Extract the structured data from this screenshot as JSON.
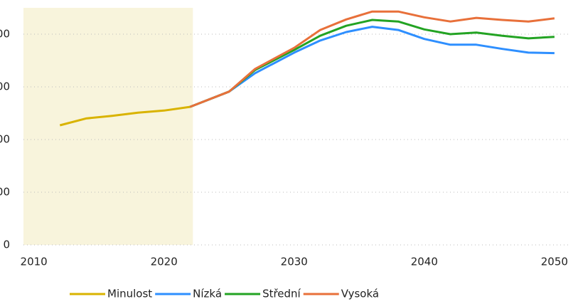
{
  "chart_data": {
    "type": "line",
    "x": [
      2012,
      2014,
      2016,
      2018,
      2020,
      2022,
      2025,
      2027,
      2030,
      2032,
      2034,
      2036,
      2038,
      2040,
      2042,
      2044,
      2046,
      2048,
      2050
    ],
    "series": [
      {
        "name": "Minulost",
        "color": "#d9b300",
        "values": [
          227,
          240,
          245,
          251,
          255,
          262,
          null,
          null,
          null,
          null,
          null,
          null,
          null,
          null,
          null,
          null,
          null,
          null,
          null
        ]
      },
      {
        "name": "Nízká",
        "color": "#2e8fff",
        "values": [
          null,
          null,
          null,
          null,
          null,
          262,
          291,
          326,
          365,
          388,
          404,
          414,
          408,
          391,
          380,
          380,
          372,
          365,
          364
        ]
      },
      {
        "name": "Střední",
        "color": "#23a323",
        "values": [
          null,
          null,
          null,
          null,
          null,
          262,
          291,
          332,
          370,
          397,
          416,
          427,
          424,
          409,
          400,
          403,
          397,
          392,
          395
        ]
      },
      {
        "name": "Vysoká",
        "color": "#e8703a",
        "values": [
          null,
          null,
          null,
          null,
          null,
          262,
          291,
          334,
          374,
          408,
          428,
          443,
          443,
          432,
          424,
          431,
          427,
          424,
          430
        ]
      }
    ],
    "xlim": [
      2009.2,
      2051.1
    ],
    "xticks": [
      2010,
      2020,
      2030,
      2040,
      2050
    ],
    "ylim": [
      0,
      450
    ],
    "yticks": [
      0,
      {
        "value": 100,
        "label": "00"
      },
      {
        "value": 200,
        "label": "00"
      },
      {
        "value": 300,
        "label": "00"
      },
      {
        "value": 400,
        "label": "00"
      }
    ],
    "grid": true,
    "legend": "bottom",
    "shade_color": "#f8f4dc"
  }
}
